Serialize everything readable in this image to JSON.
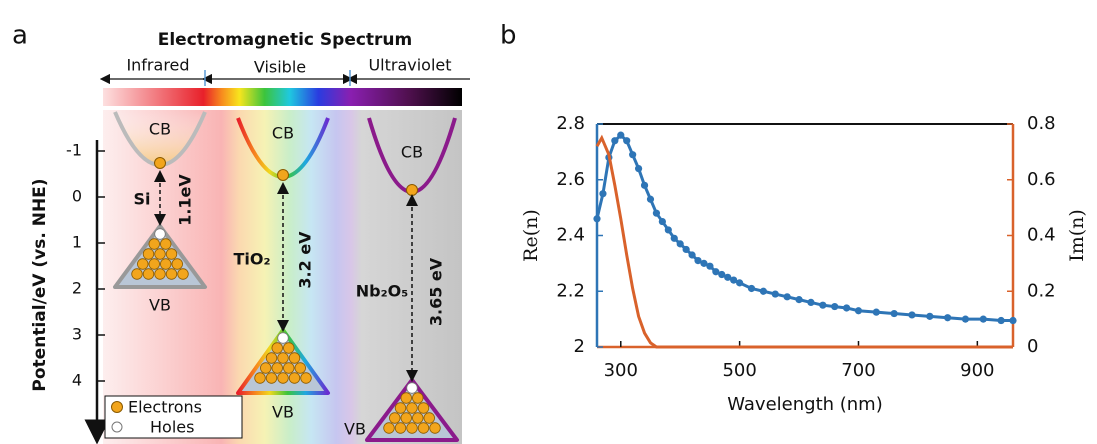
{
  "panel_labels": [
    "a",
    "b"
  ],
  "diagram": {
    "title": "Electromagnetic Spectrum",
    "regions": [
      "Infrared",
      "Visible",
      "Ultraviolet"
    ],
    "potential_axis": {
      "label": "Potential/eV (vs. NHE)",
      "ticks": [
        -1,
        0,
        1,
        2,
        3,
        4
      ]
    },
    "materials": [
      {
        "name": "Si",
        "gap": "1.1eV",
        "cb": "CB",
        "vb": "VB"
      },
      {
        "name": "TiO₂",
        "gap": "3.2 eV",
        "cb": "CB",
        "vb": "VB"
      },
      {
        "name": "Nb₂O₅",
        "gap": "3.65 eV",
        "cb": "CB",
        "vb": "VB"
      }
    ],
    "legend": [
      "Electrons",
      "Holes"
    ]
  },
  "chart_data": {
    "type": "line",
    "xlabel": "Wavelength (nm)",
    "ylabel": "Re(n)",
    "y2label": "Im(n)",
    "xlim": [
      260,
      960
    ],
    "xticks": [
      300,
      500,
      700,
      900
    ],
    "ylim": [
      2,
      2.8
    ],
    "yticks": [
      2,
      2.2,
      2.4,
      2.6,
      2.8
    ],
    "y2lim": [
      0,
      0.8
    ],
    "y2ticks": [
      0,
      0.2,
      0.4,
      0.6,
      0.8
    ],
    "series": [
      {
        "color": "#2e75b6",
        "markers": true,
        "x": [
          260,
          270,
          280,
          290,
          300,
          310,
          320,
          330,
          340,
          350,
          360,
          370,
          380,
          390,
          400,
          410,
          420,
          430,
          440,
          450,
          460,
          470,
          480,
          490,
          500,
          520,
          540,
          560,
          580,
          600,
          620,
          640,
          660,
          680,
          700,
          730,
          760,
          790,
          820,
          850,
          880,
          910,
          940,
          960
        ],
        "values": [
          2.46,
          2.55,
          2.68,
          2.74,
          2.76,
          2.74,
          2.69,
          2.64,
          2.58,
          2.53,
          2.48,
          2.45,
          2.42,
          2.39,
          2.37,
          2.35,
          2.33,
          2.31,
          2.3,
          2.29,
          2.27,
          2.26,
          2.25,
          2.24,
          2.23,
          2.21,
          2.2,
          2.19,
          2.18,
          2.17,
          2.16,
          2.15,
          2.145,
          2.14,
          2.13,
          2.125,
          2.12,
          2.115,
          2.11,
          2.105,
          2.1,
          2.1,
          2.095,
          2.095
        ]
      },
      {
        "color": "#d9622b",
        "axis": "y2",
        "x": [
          260,
          268,
          280,
          290,
          300,
          310,
          320,
          330,
          340,
          350,
          360,
          400,
          500,
          600,
          700,
          800,
          900,
          960
        ],
        "values": [
          0.72,
          0.75,
          0.69,
          0.58,
          0.46,
          0.33,
          0.21,
          0.11,
          0.05,
          0.015,
          0,
          0,
          0,
          0,
          0,
          0,
          0,
          0
        ]
      }
    ]
  }
}
